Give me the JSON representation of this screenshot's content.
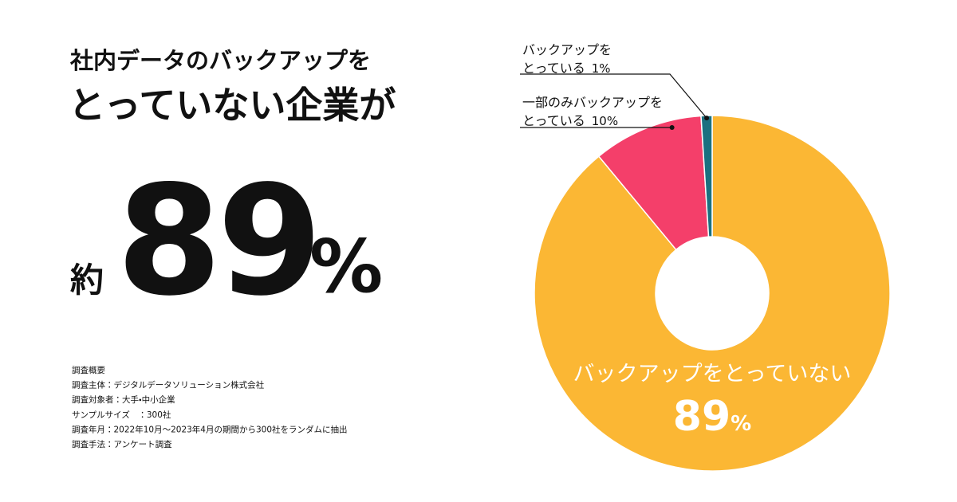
{
  "headline": {
    "line1": "社内データのバックアップを",
    "line2": "とっていない企業が",
    "prefix": "約",
    "number": "89",
    "unit": "%"
  },
  "notes": [
    "調査概要",
    "調査主体：デジタルデータソリューション株式会社",
    "調査対象者：大手・中小企業",
    "サンプルサイズ　：300社",
    "調査年月：2022年10月〜2023年4月の期間から300社をランダムに抽出",
    "調査手法：アンケート調査"
  ],
  "chart_data": {
    "type": "donut",
    "categories": [
      "バックアップをとっていない",
      "一部のみバックアップをとっている",
      "バックアップをとっている"
    ],
    "values": [
      89,
      10,
      1
    ],
    "value_labels": [
      "89%",
      "10%",
      "1%"
    ],
    "colors": [
      "#fbb734",
      "#f43f6a",
      "#1a7080"
    ]
  }
}
